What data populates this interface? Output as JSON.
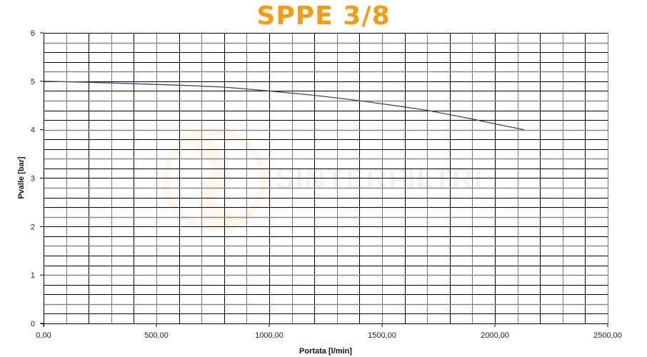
{
  "chart_data": {
    "type": "line",
    "title": "SPPE 3/8",
    "xlabel": "Portata [l/min]",
    "ylabel": "Pvalle [bar]",
    "xlim": [
      0,
      2500
    ],
    "ylim": [
      0,
      6
    ],
    "x_ticks": [
      "0,00",
      "500,00",
      "1000,00",
      "1500,00",
      "2000,00",
      "2500,00"
    ],
    "y_ticks": [
      "0",
      "1",
      "2",
      "3",
      "4",
      "5",
      "6"
    ],
    "grid": true,
    "grid_minor_x": 100,
    "grid_minor_y": 0.2,
    "watermark": "SINTERFILTRI",
    "series": [
      {
        "name": "SPPE 3/8",
        "color": "#3a3f8f",
        "x": [
          0,
          200,
          400,
          600,
          800,
          1000,
          1200,
          1400,
          1600,
          1700,
          1800,
          1900,
          2000,
          2130
        ],
        "y": [
          5.0,
          4.98,
          4.95,
          4.92,
          4.88,
          4.8,
          4.71,
          4.6,
          4.47,
          4.4,
          4.31,
          4.22,
          4.12,
          4.0
        ]
      }
    ]
  }
}
